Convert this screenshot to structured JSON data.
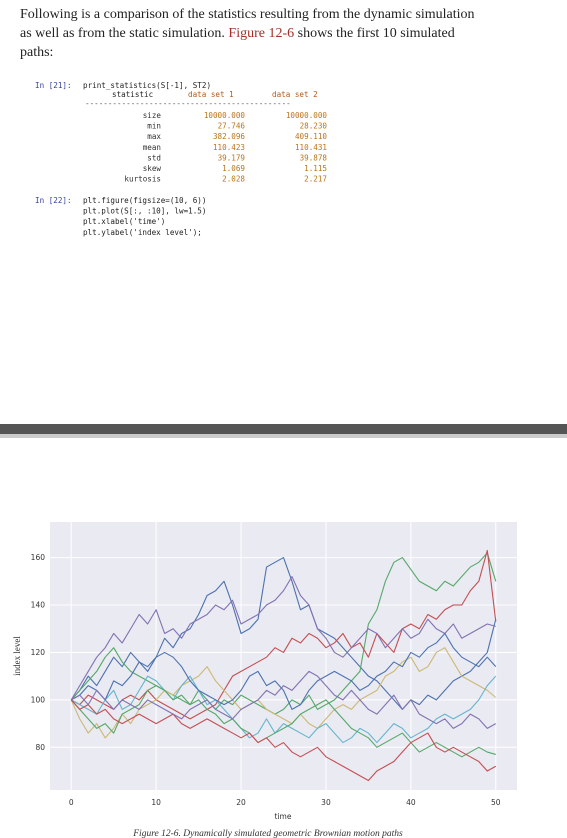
{
  "paragraph": {
    "line1": "Following is a comparison of the statistics resulting from the dynamic simulation",
    "line2_start": "as well as from the static simulation.",
    "figure_ref": "Figure 12-6",
    "line2_end": "shows the first 10 simulated",
    "line3": "paths:"
  },
  "cell1": {
    "prompt": "In [21]:",
    "code": "print_statistics(S[-1], ST2)",
    "table": {
      "header": [
        "statistic",
        "data set 1",
        "data set 2"
      ],
      "rule": "---------------------------------------------",
      "rows": [
        [
          "size",
          "10000.000",
          "10000.000"
        ],
        [
          "min",
          "27.746",
          "28.230"
        ],
        [
          "max",
          "382.096",
          "409.110"
        ],
        [
          "mean",
          "110.423",
          "110.431"
        ],
        [
          "std",
          "39.179",
          "39.878"
        ],
        [
          "skew",
          "1.069",
          "1.115"
        ],
        [
          "kurtosis",
          "2.028",
          "2.217"
        ]
      ]
    }
  },
  "cell2": {
    "prompt": "In [22]:",
    "lines": [
      "plt.figure(figsize=(10, 6))",
      "plt.plot(S[:, :10], lw=1.5)",
      "plt.xlabel('time')",
      "plt.ylabel('index level');"
    ]
  },
  "chart_data": {
    "type": "line",
    "x_label": "time",
    "y_label": "index level",
    "x": [
      0,
      1,
      2,
      3,
      4,
      5,
      6,
      7,
      8,
      9,
      10,
      11,
      12,
      13,
      14,
      15,
      16,
      17,
      18,
      19,
      20,
      21,
      22,
      23,
      24,
      25,
      26,
      27,
      28,
      29,
      30,
      31,
      32,
      33,
      34,
      35,
      36,
      37,
      38,
      39,
      40,
      41,
      42,
      43,
      44,
      45,
      46,
      47,
      48,
      49,
      50
    ],
    "xlim": [
      -2.5,
      52.5
    ],
    "ylim": [
      62,
      175
    ],
    "xticks": [
      0,
      10,
      20,
      30,
      40,
      50
    ],
    "yticks": [
      80,
      100,
      120,
      140,
      160
    ],
    "grid": true,
    "series": [
      {
        "color": "#4C72B0",
        "values": [
          100,
          104,
          110,
          106,
          112,
          118,
          114,
          120,
          116,
          114,
          118,
          126,
          122,
          128,
          130,
          136,
          144,
          146,
          150,
          140,
          128,
          130,
          134,
          156,
          158,
          160,
          150,
          138,
          140,
          130,
          128,
          126,
          122,
          118,
          114,
          110,
          108,
          104,
          100,
          96,
          100,
          98,
          102,
          100,
          104,
          108,
          110,
          112,
          116,
          120,
          134
        ]
      },
      {
        "color": "#55A868",
        "values": [
          100,
          104,
          108,
          112,
          118,
          122,
          116,
          112,
          110,
          108,
          106,
          104,
          102,
          100,
          98,
          104,
          100,
          96,
          100,
          98,
          102,
          100,
          98,
          96,
          94,
          96,
          100,
          98,
          102,
          96,
          98,
          100,
          104,
          108,
          112,
          132,
          138,
          150,
          158,
          160,
          155,
          150,
          148,
          146,
          150,
          148,
          152,
          156,
          158,
          162,
          150
        ]
      },
      {
        "color": "#C44E52",
        "values": [
          100,
          98,
          102,
          100,
          98,
          96,
          100,
          102,
          100,
          104,
          100,
          98,
          96,
          94,
          92,
          94,
          96,
          98,
          104,
          110,
          112,
          114,
          116,
          118,
          122,
          120,
          126,
          124,
          128,
          126,
          122,
          124,
          128,
          122,
          124,
          118,
          128,
          124,
          120,
          130,
          132,
          130,
          136,
          134,
          138,
          140,
          140,
          146,
          150,
          163,
          133
        ]
      },
      {
        "color": "#8172B2",
        "values": [
          100,
          106,
          112,
          118,
          122,
          128,
          124,
          130,
          136,
          132,
          138,
          128,
          130,
          126,
          132,
          134,
          136,
          140,
          138,
          142,
          132,
          134,
          136,
          140,
          142,
          146,
          152,
          144,
          140,
          130,
          126,
          120,
          118,
          122,
          126,
          130,
          128,
          122,
          126,
          130,
          126,
          128,
          134,
          130,
          128,
          132,
          126,
          128,
          130,
          132,
          131
        ]
      },
      {
        "color": "#CCB974",
        "values": [
          100,
          92,
          86,
          90,
          84,
          88,
          94,
          90,
          96,
          98,
          100,
          104,
          102,
          106,
          108,
          110,
          114,
          108,
          104,
          100,
          96,
          98,
          100,
          96,
          94,
          92,
          90,
          94,
          90,
          88,
          92,
          96,
          98,
          96,
          100,
          102,
          104,
          110,
          112,
          116,
          118,
          112,
          114,
          120,
          122,
          116,
          110,
          108,
          106,
          104,
          101
        ]
      },
      {
        "color": "#64B5CD",
        "values": [
          100,
          98,
          96,
          94,
          100,
          104,
          96,
          98,
          104,
          110,
          108,
          104,
          100,
          106,
          110,
          104,
          98,
          100,
          96,
          92,
          88,
          84,
          86,
          92,
          86,
          90,
          88,
          86,
          84,
          88,
          90,
          86,
          82,
          84,
          88,
          86,
          82,
          86,
          90,
          88,
          84,
          86,
          88,
          92,
          94,
          92,
          94,
          96,
          100,
          106,
          110
        ]
      },
      {
        "color": "#4C72B0",
        "values": [
          100,
          102,
          106,
          104,
          100,
          108,
          106,
          110,
          116,
          112,
          118,
          120,
          118,
          114,
          108,
          104,
          102,
          100,
          98,
          100,
          104,
          110,
          112,
          106,
          108,
          104,
          96,
          98,
          104,
          108,
          110,
          112,
          110,
          108,
          104,
          106,
          110,
          112,
          116,
          114,
          120,
          118,
          122,
          124,
          128,
          122,
          118,
          116,
          114,
          118,
          114
        ]
      },
      {
        "color": "#55A868",
        "values": [
          100,
          96,
          92,
          88,
          90,
          86,
          94,
          96,
          98,
          104,
          106,
          104,
          100,
          102,
          98,
          100,
          96,
          94,
          90,
          92,
          88,
          86,
          82,
          84,
          86,
          88,
          90,
          94,
          96,
          98,
          100,
          96,
          92,
          88,
          86,
          84,
          80,
          82,
          84,
          86,
          82,
          78,
          80,
          82,
          80,
          78,
          76,
          78,
          80,
          78,
          77
        ]
      },
      {
        "color": "#C44E52",
        "values": [
          100,
          96,
          98,
          94,
          96,
          92,
          90,
          92,
          94,
          92,
          90,
          92,
          94,
          90,
          88,
          90,
          92,
          90,
          88,
          86,
          84,
          86,
          82,
          84,
          80,
          82,
          78,
          76,
          78,
          80,
          76,
          74,
          72,
          70,
          68,
          66,
          70,
          72,
          74,
          78,
          82,
          84,
          86,
          80,
          78,
          80,
          78,
          76,
          74,
          70,
          72
        ]
      },
      {
        "color": "#8172B2",
        "values": [
          100,
          102,
          98,
          104,
          100,
          96,
          100,
          98,
          96,
          100,
          98,
          96,
          94,
          92,
          96,
          98,
          100,
          96,
          94,
          92,
          96,
          98,
          100,
          104,
          102,
          106,
          104,
          108,
          112,
          110,
          106,
          102,
          100,
          104,
          100,
          96,
          94,
          98,
          102,
          96,
          100,
          94,
          92,
          90,
          92,
          88,
          90,
          94,
          92,
          88,
          90
        ]
      }
    ]
  },
  "caption": "Figure 12-6. Dynamically simulated geometric Brownian motion paths"
}
